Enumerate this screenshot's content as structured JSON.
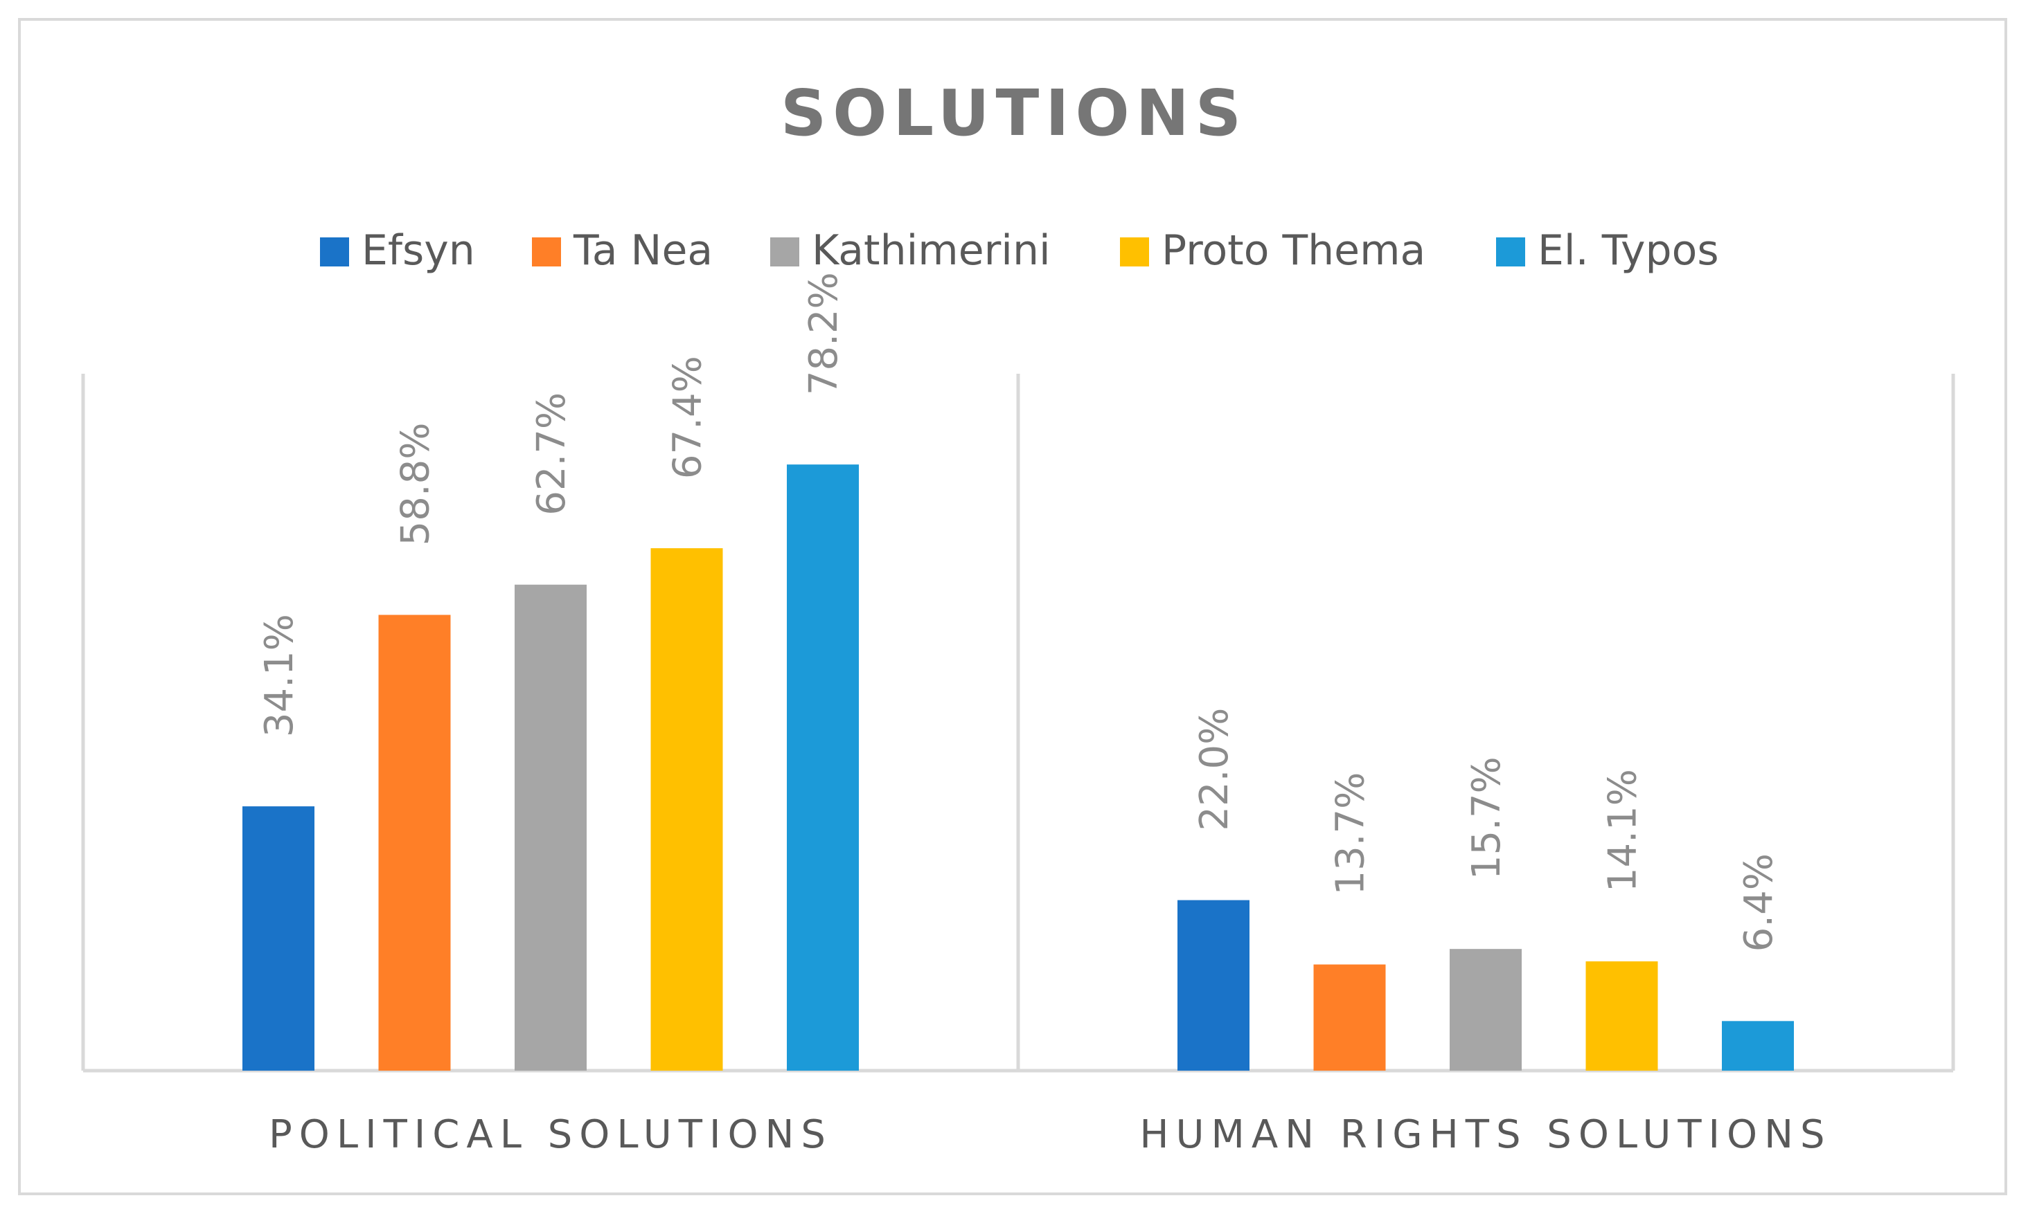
{
  "chart_data": {
    "type": "bar",
    "title": "SOLUTIONS",
    "xlabel": "",
    "ylabel": "",
    "categories": [
      "POLITICAL SOLUTIONS",
      "HUMAN RIGHTS SOLUTIONS"
    ],
    "series": [
      {
        "name": "Efsyn",
        "color": "#1a73c8",
        "values": [
          34.1,
          22.0
        ],
        "labels": [
          "34.1%",
          "22.0%"
        ]
      },
      {
        "name": "Ta Nea",
        "color": "#ff7f27",
        "values": [
          58.8,
          13.7
        ],
        "labels": [
          "58.8%",
          "13.7%"
        ]
      },
      {
        "name": "Kathimerini",
        "color": "#a6a6a6",
        "values": [
          62.7,
          15.7
        ],
        "labels": [
          "62.7%",
          "15.7%"
        ]
      },
      {
        "name": "Proto Thema",
        "color": "#ffc000",
        "values": [
          67.4,
          14.1
        ],
        "labels": [
          "67.4%",
          "14.1%"
        ]
      },
      {
        "name": "El. Typos",
        "color": "#1c9ad8",
        "values": [
          78.2,
          6.4
        ],
        "labels": [
          "78.2%",
          "6.4%"
        ]
      }
    ],
    "ylim": [
      0,
      90
    ],
    "grid": false,
    "legend_position": "top",
    "data_labels_rotated": true
  }
}
